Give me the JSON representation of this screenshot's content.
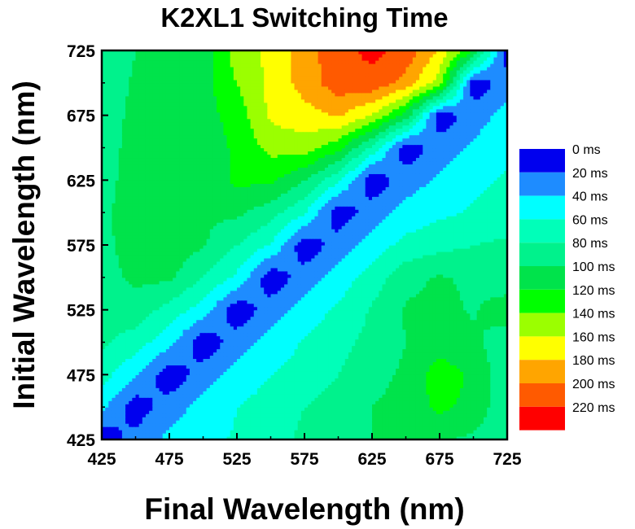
{
  "chart_data": {
    "type": "heatmap",
    "subtype": "filled-contour",
    "title": "K2XL1 Switching Time",
    "xlabel": "Final Wavelength (nm)",
    "ylabel": "Initial Wavelength (nm)",
    "xlim": [
      425,
      725
    ],
    "ylim": [
      425,
      725
    ],
    "x_ticks": [
      425,
      475,
      525,
      575,
      625,
      675,
      725
    ],
    "y_ticks": [
      425,
      475,
      525,
      575,
      625,
      675,
      725
    ],
    "x_tick_labels": [
      "425",
      "475",
      "525",
      "575",
      "625",
      "675",
      "725"
    ],
    "y_tick_labels": [
      "425",
      "475",
      "525",
      "575",
      "625",
      "675",
      "725"
    ],
    "grid": false,
    "legend_position": "right",
    "value_unit": "ms",
    "levels": [
      {
        "label": "0 ms",
        "value": 0,
        "color": "#0000ee"
      },
      {
        "label": "20 ms",
        "value": 20,
        "color": "#1e8cff"
      },
      {
        "label": "40 ms",
        "value": 40,
        "color": "#00ffff"
      },
      {
        "label": "60 ms",
        "value": 60,
        "color": "#00ffb9"
      },
      {
        "label": "80 ms",
        "value": 80,
        "color": "#00f28c"
      },
      {
        "label": "100 ms",
        "value": 100,
        "color": "#00e34b"
      },
      {
        "label": "120 ms",
        "value": 120,
        "color": "#00ff00"
      },
      {
        "label": "140 ms",
        "value": 140,
        "color": "#9bff00"
      },
      {
        "label": "160 ms",
        "value": 160,
        "color": "#ffff00"
      },
      {
        "label": "180 ms",
        "value": 180,
        "color": "#ffa500"
      },
      {
        "label": "200 ms",
        "value": 200,
        "color": "#ff5a00"
      },
      {
        "label": "220 ms",
        "value": 220,
        "color": "#ff0000"
      }
    ],
    "x": [
      425,
      450,
      475,
      500,
      525,
      550,
      575,
      600,
      625,
      650,
      675,
      700,
      725
    ],
    "y": [
      425,
      450,
      475,
      500,
      525,
      550,
      575,
      600,
      625,
      650,
      675,
      700,
      725
    ],
    "z": [
      [
        5,
        28,
        45,
        55,
        62,
        72,
        84,
        94,
        100,
        104,
        102,
        96,
        82
      ],
      [
        45,
        8,
        30,
        48,
        60,
        68,
        80,
        90,
        100,
        108,
        124,
        114,
        84
      ],
      [
        68,
        42,
        6,
        30,
        48,
        60,
        68,
        80,
        92,
        104,
        132,
        116,
        86
      ],
      [
        84,
        70,
        46,
        6,
        30,
        48,
        62,
        74,
        86,
        100,
        110,
        104,
        88
      ],
      [
        88,
        92,
        72,
        50,
        6,
        30,
        48,
        64,
        82,
        102,
        106,
        98,
        112
      ],
      [
        92,
        104,
        104,
        80,
        56,
        6,
        30,
        48,
        70,
        94,
        102,
        96,
        86
      ],
      [
        94,
        110,
        112,
        102,
        80,
        58,
        6,
        30,
        50,
        66,
        74,
        80,
        84
      ],
      [
        96,
        110,
        112,
        104,
        104,
        88,
        62,
        6,
        30,
        48,
        56,
        62,
        68
      ],
      [
        92,
        110,
        112,
        106,
        124,
        124,
        100,
        64,
        6,
        30,
        44,
        56,
        62
      ],
      [
        88,
        110,
        112,
        108,
        124,
        146,
        150,
        126,
        74,
        6,
        30,
        44,
        56
      ],
      [
        84,
        108,
        112,
        112,
        128,
        164,
        172,
        182,
        158,
        112,
        6,
        30,
        48
      ],
      [
        82,
        104,
        110,
        112,
        140,
        166,
        188,
        212,
        214,
        192,
        150,
        6,
        30
      ],
      [
        80,
        100,
        104,
        110,
        150,
        164,
        190,
        214,
        225,
        214,
        176,
        120,
        5
      ]
    ]
  }
}
